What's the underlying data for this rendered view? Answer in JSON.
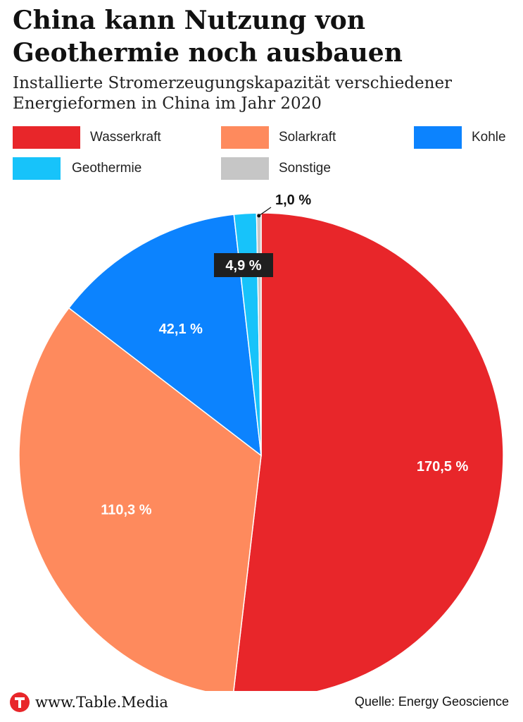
{
  "header": {
    "title": "China kann Nutzung von Geothermie noch ausbauen",
    "subtitle": "Installierte Stromerzeugungskapazität verschiedener Energieformen in China im Jahr 2020"
  },
  "legend": [
    {
      "label": "Wasserkraft",
      "color": "#e8262a"
    },
    {
      "label": "Solarkraft",
      "color": "#fe8a5d"
    },
    {
      "label": "Kohle",
      "color": "#0c83fe"
    },
    {
      "label": "Geothermie",
      "color": "#17c3fa"
    },
    {
      "label": "Sonstige",
      "color": "#c6c6c6"
    }
  ],
  "chart_data": {
    "type": "pie",
    "slices": [
      {
        "label": "Wasserkraft",
        "value": 170.5,
        "display": "170,5 %",
        "color": "#e8262a"
      },
      {
        "label": "Solarkraft",
        "value": 110.3,
        "display": "110,3 %",
        "color": "#fe8a5d"
      },
      {
        "label": "Kohle",
        "value": 42.1,
        "display": "42,1 %",
        "color": "#0c83fe"
      },
      {
        "label": "Geothermie",
        "value": 4.9,
        "display": "4,9 %",
        "color": "#17c3fa"
      },
      {
        "label": "Sonstige",
        "value": 1.0,
        "display": "1,0 %",
        "color": "#c6c6c6"
      }
    ],
    "start_angle": "12 o'clock",
    "direction": "clockwise",
    "legend_position": "top"
  },
  "footer": {
    "brand": "www.Table.Media",
    "source": "Quelle: Energy Geoscience"
  }
}
